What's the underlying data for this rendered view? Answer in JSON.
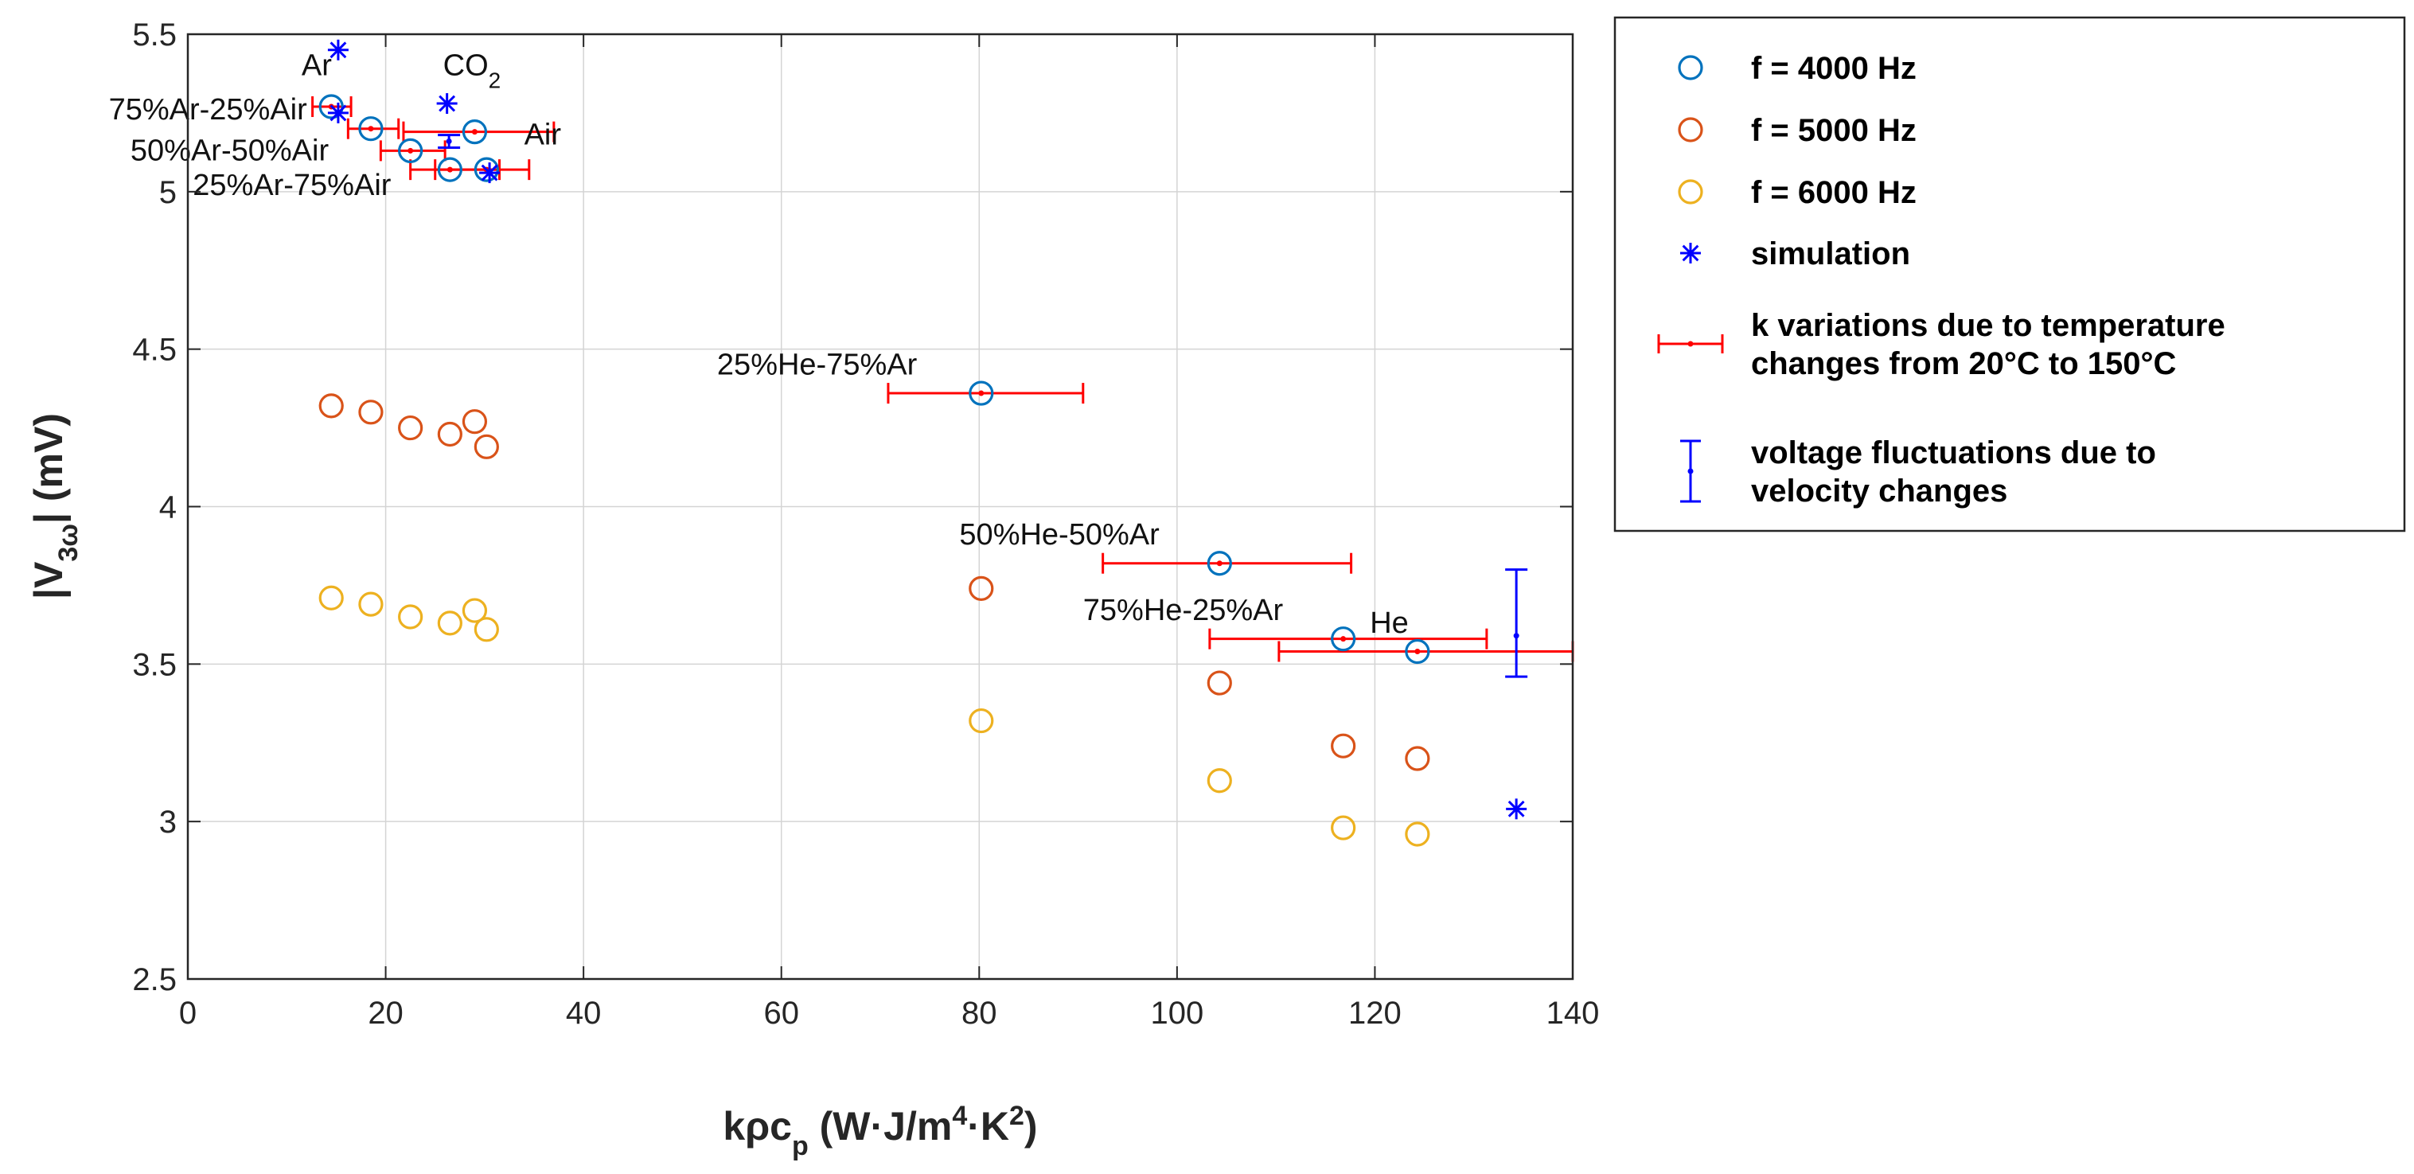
{
  "chart_data": {
    "type": "scatter",
    "title": "",
    "xlabel": "kρc",
    "xlabel_sub": "p",
    "xlabel_units_a": " (W·J/m",
    "xlabel_sup1": "4",
    "xlabel_units_b": "·K",
    "xlabel_sup2": "2",
    "xlabel_units_c": ")",
    "ylabel_prefix": "|V",
    "ylabel_sub": "3ω",
    "ylabel_suffix": "| (mV)",
    "xlim": [
      0,
      140
    ],
    "ylim": [
      2.5,
      5.5
    ],
    "xticks": [
      0,
      20,
      40,
      60,
      80,
      100,
      120,
      140
    ],
    "yticks": [
      2.5,
      3,
      3.5,
      4,
      4.5,
      5,
      5.5
    ],
    "xtick_labels": [
      "0",
      "20",
      "40",
      "60",
      "80",
      "100",
      "120",
      "140"
    ],
    "ytick_labels": [
      "2.5",
      "3",
      "3.5",
      "4",
      "4.5",
      "5",
      "5.5"
    ],
    "grid": true,
    "legend_position": "outside-right",
    "colors": {
      "f4000": "#0072BD",
      "f5000": "#D95319",
      "f6000": "#EDB120",
      "simulation": "#0000FF",
      "kvar": "#FF0000",
      "vfluct": "#0000FF"
    },
    "series": [
      {
        "name": "f = 4000 Hz",
        "marker": "circle",
        "color": "#0072BD",
        "x": [
          14.5,
          18.5,
          22.5,
          26.5,
          29.0,
          30.2,
          80.2,
          104.3,
          116.8,
          124.3
        ],
        "y": [
          5.27,
          5.2,
          5.13,
          5.07,
          5.19,
          5.07,
          4.36,
          3.82,
          3.58,
          3.54
        ]
      },
      {
        "name": "f = 5000 Hz",
        "marker": "circle",
        "color": "#D95319",
        "x": [
          14.5,
          18.5,
          22.5,
          26.5,
          29.0,
          30.2,
          80.2,
          104.3,
          116.8,
          124.3
        ],
        "y": [
          4.32,
          4.3,
          4.25,
          4.23,
          4.27,
          4.19,
          3.74,
          3.44,
          3.24,
          3.2
        ]
      },
      {
        "name": "f = 6000 Hz",
        "marker": "circle",
        "color": "#EDB120",
        "x": [
          14.5,
          18.5,
          22.5,
          26.5,
          29.0,
          30.2,
          80.2,
          104.3,
          116.8,
          124.3
        ],
        "y": [
          3.71,
          3.69,
          3.65,
          3.63,
          3.67,
          3.61,
          3.32,
          3.13,
          2.98,
          2.96
        ]
      },
      {
        "name": "simulation",
        "marker": "asterisk",
        "color": "#0000FF",
        "x": [
          15.2,
          15.2,
          26.2,
          30.5,
          134.3
        ],
        "y": [
          5.45,
          5.25,
          5.28,
          5.06,
          3.04
        ]
      }
    ],
    "k_error_bars": {
      "name": "k variations due to temperature changes from 20°C to 150°C",
      "color": "#FF0000",
      "items": [
        {
          "x": 14.5,
          "y": 5.27,
          "xmin": 12.6,
          "xmax": 16.5
        },
        {
          "x": 18.5,
          "y": 5.2,
          "xmin": 16.2,
          "xmax": 21.3
        },
        {
          "x": 22.5,
          "y": 5.13,
          "xmin": 19.5,
          "xmax": 26.0
        },
        {
          "x": 26.5,
          "y": 5.07,
          "xmin": 22.5,
          "xmax": 31.5
        },
        {
          "x": 29.0,
          "y": 5.19,
          "xmin": 21.8,
          "xmax": 37.0
        },
        {
          "x": 30.2,
          "y": 5.07,
          "xmin": 25.0,
          "xmax": 34.5
        },
        {
          "x": 80.2,
          "y": 4.36,
          "xmin": 70.8,
          "xmax": 90.5
        },
        {
          "x": 104.3,
          "y": 3.82,
          "xmin": 92.5,
          "xmax": 117.6
        },
        {
          "x": 116.8,
          "y": 3.58,
          "xmin": 103.3,
          "xmax": 131.3
        },
        {
          "x": 124.3,
          "y": 3.54,
          "xmin": 110.3,
          "xmax": 140.0
        }
      ]
    },
    "v_error_bars": {
      "name": "voltage fluctuations due to velocity changes",
      "color": "#0000FF",
      "items": [
        {
          "x": 134.3,
          "y": 3.59,
          "ymin": 3.46,
          "ymax": 3.8
        },
        {
          "x": 26.4,
          "y": 5.16,
          "ymin": 5.14,
          "ymax": 5.18
        }
      ]
    },
    "annotations": [
      {
        "text": "Ar",
        "x": 11.5,
        "y": 5.37
      },
      {
        "text": "CO",
        "sub": "2",
        "x": 25.8,
        "y": 5.37
      },
      {
        "text": "75%Ar-25%Air",
        "x": -8.0,
        "y": 5.23
      },
      {
        "text": "50%Ar-50%Air",
        "x": -5.8,
        "y": 5.1
      },
      {
        "text": "Air",
        "x": 34.0,
        "y": 5.15
      },
      {
        "text": "25%Ar-75%Air",
        "x": 0.5,
        "y": 4.99
      },
      {
        "text": "25%He-75%Ar",
        "x": 53.5,
        "y": 4.42
      },
      {
        "text": "50%He-50%Ar",
        "x": 78.0,
        "y": 3.88
      },
      {
        "text": "75%He-25%Ar",
        "x": 90.5,
        "y": 3.64
      },
      {
        "text": "He",
        "x": 119.5,
        "y": 3.6
      }
    ],
    "legend": [
      {
        "key": "f4000",
        "symbol": "circle",
        "color": "#0072BD",
        "lines": [
          "f = 4000 Hz"
        ]
      },
      {
        "key": "f5000",
        "symbol": "circle",
        "color": "#D95319",
        "lines": [
          "f = 5000 Hz"
        ]
      },
      {
        "key": "f6000",
        "symbol": "circle",
        "color": "#EDB120",
        "lines": [
          "f = 6000 Hz"
        ]
      },
      {
        "key": "simulation",
        "symbol": "asterisk",
        "color": "#0000FF",
        "lines": [
          "simulation"
        ]
      },
      {
        "key": "kvar",
        "symbol": "hbar",
        "color": "#FF0000",
        "lines": [
          "k variations due to temperature",
          "changes from 20°C to 150°C"
        ]
      },
      {
        "key": "vfluct",
        "symbol": "vbar",
        "color": "#0000FF",
        "lines": [
          "voltage fluctuations due to",
          "velocity changes"
        ]
      }
    ]
  }
}
